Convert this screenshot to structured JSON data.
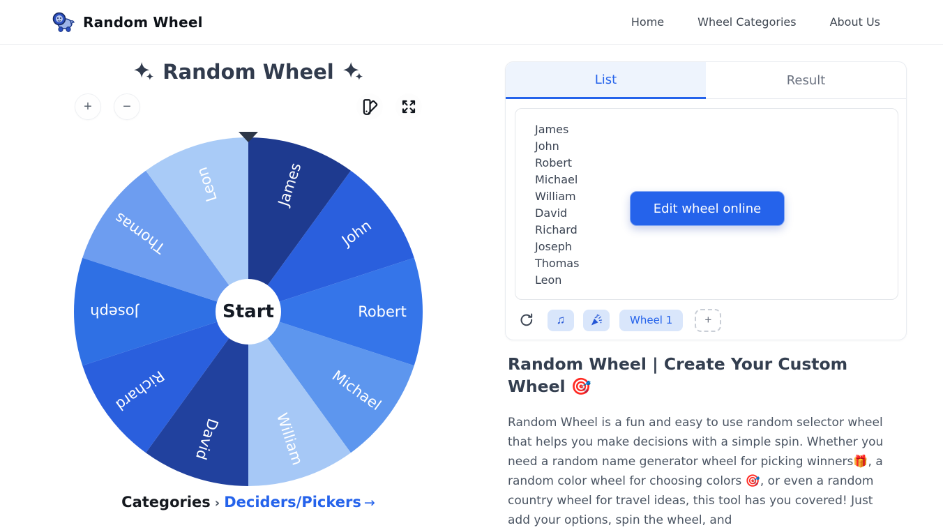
{
  "nav": {
    "brand": "Random Wheel",
    "links": [
      {
        "label": "Home"
      },
      {
        "label": "Wheel Categories"
      },
      {
        "label": "About Us"
      }
    ]
  },
  "wheel_section": {
    "title": "Random Wheel",
    "zoom_in_label": "+",
    "zoom_out_label": "−",
    "start_label": "Start",
    "breadcrumb": {
      "root": "Categories",
      "separator": "›",
      "category": "Deciders/Pickers",
      "arrow": "→"
    }
  },
  "wheel": {
    "pointer_color": "#2d3748",
    "label_color": "#ffffff",
    "segments": [
      {
        "label": "James",
        "color": "#1e3a8f"
      },
      {
        "label": "John",
        "color": "#2a5fdd"
      },
      {
        "label": "Robert",
        "color": "#3575e9"
      },
      {
        "label": "Michael",
        "color": "#5d96ee"
      },
      {
        "label": "William",
        "color": "#a6c8f6"
      },
      {
        "label": "David",
        "color": "#21419e"
      },
      {
        "label": "Richard",
        "color": "#2a5fdd"
      },
      {
        "label": "Joseph",
        "color": "#2f70e4"
      },
      {
        "label": "Thomas",
        "color": "#6d9df0"
      },
      {
        "label": "Leon",
        "color": "#a9cbf7"
      }
    ]
  },
  "panel": {
    "tabs": [
      {
        "label": "List",
        "active": true
      },
      {
        "label": "Result",
        "active": false
      }
    ],
    "entries": [
      "James",
      "John",
      "Robert",
      "Michael",
      "William",
      "David",
      "Richard",
      "Joseph",
      "Thomas",
      "Leon"
    ],
    "edit_button_label": "Edit wheel online",
    "toolbar": {
      "refresh_icon": "refresh-icon",
      "music_icon": "music-note-icon",
      "music_glyph": "♫",
      "confetti_icon": "party-popper-icon",
      "wheel_badge": "Wheel 1",
      "add_label": "+"
    },
    "accent_color": "#2563eb",
    "chip_bg_color": "#d9e6fb"
  },
  "seo": {
    "heading": "Random Wheel | Create Your Custom Wheel 🎯",
    "paragraph": "Random Wheel is a fun and easy to use random selector wheel that helps you make decisions with a simple spin. Whether you need a random name generator wheel for picking winners🎁, a random color wheel for choosing colors 🎯, or even a random country wheel for travel ideas, this tool has you covered! Just add your options, spin the wheel, and"
  }
}
